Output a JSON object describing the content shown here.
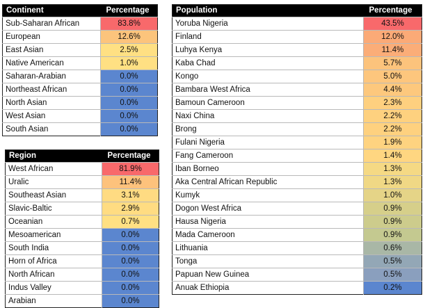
{
  "colors": {
    "header_bg": "#000000",
    "header_text": "#ffffff",
    "low": "#5b86cf",
    "scale": [
      "#f8696b",
      "#fb9d75",
      "#fdd17e",
      "#ffe083",
      "#e7dc87",
      "#c7d28e",
      "#a8bca2",
      "#8aa5b8",
      "#6f8ed0"
    ]
  },
  "tables": {
    "continent": {
      "headers": [
        "Continent",
        "Percentage"
      ],
      "rows": [
        {
          "name": "Sub-Saharan African",
          "value": "83.8%",
          "color": "#f8696b"
        },
        {
          "name": "European",
          "value": "12.6%",
          "color": "#fcc47c"
        },
        {
          "name": "East Asian",
          "value": "2.5%",
          "color": "#ffe083"
        },
        {
          "name": "Native American",
          "value": "1.0%",
          "color": "#ffe083"
        },
        {
          "name": "Saharan-Arabian",
          "value": "0.0%",
          "color": "#5b86cf"
        },
        {
          "name": "Northeast African",
          "value": "0.0%",
          "color": "#5b86cf"
        },
        {
          "name": "North Asian",
          "value": "0.0%",
          "color": "#5b86cf"
        },
        {
          "name": "West Asian",
          "value": "0.0%",
          "color": "#5b86cf"
        },
        {
          "name": "South Asian",
          "value": "0.0%",
          "color": "#5b86cf"
        }
      ]
    },
    "region": {
      "headers": [
        "Region",
        "Percentage"
      ],
      "rows": [
        {
          "name": "West African",
          "value": "81.9%",
          "color": "#f8696b"
        },
        {
          "name": "Uralic",
          "value": "11.4%",
          "color": "#fdc27c"
        },
        {
          "name": "Southeast Asian",
          "value": "3.1%",
          "color": "#ffdb82"
        },
        {
          "name": "Slavic-Baltic",
          "value": "2.9%",
          "color": "#ffdc82"
        },
        {
          "name": "Oceanian",
          "value": "0.7%",
          "color": "#ffe083"
        },
        {
          "name": "Mesoamerican",
          "value": "0.0%",
          "color": "#5b86cf"
        },
        {
          "name": "South India",
          "value": "0.0%",
          "color": "#5b86cf"
        },
        {
          "name": "Horn of Africa",
          "value": "0.0%",
          "color": "#5b86cf"
        },
        {
          "name": "North African",
          "value": "0.0%",
          "color": "#5b86cf"
        },
        {
          "name": "Indus Valley",
          "value": "0.0%",
          "color": "#5b86cf"
        },
        {
          "name": "Arabian",
          "value": "0.0%",
          "color": "#5b86cf"
        }
      ]
    },
    "population": {
      "headers": [
        "Population",
        "Percentage"
      ],
      "rows": [
        {
          "name": "Yoruba Nigeria",
          "value": "43.5%",
          "color": "#f8696b"
        },
        {
          "name": "Finland",
          "value": "12.0%",
          "color": "#fbaa77"
        },
        {
          "name": "Luhya Kenya",
          "value": "11.4%",
          "color": "#fbad78"
        },
        {
          "name": "Kaba Chad",
          "value": "5.7%",
          "color": "#fcc37c"
        },
        {
          "name": "Kongo",
          "value": "5.0%",
          "color": "#fdc67d"
        },
        {
          "name": "Bambara West Africa",
          "value": "4.4%",
          "color": "#fdc87d"
        },
        {
          "name": "Bamoun Cameroon",
          "value": "2.3%",
          "color": "#fed07f"
        },
        {
          "name": "Naxi China",
          "value": "2.2%",
          "color": "#fed17f"
        },
        {
          "name": "Brong",
          "value": "2.2%",
          "color": "#fed17f"
        },
        {
          "name": "Fulani Nigeria",
          "value": "1.9%",
          "color": "#fed380"
        },
        {
          "name": "Fang Cameroon",
          "value": "1.4%",
          "color": "#ffd681"
        },
        {
          "name": "Iban Borneo",
          "value": "1.3%",
          "color": "#f5d984"
        },
        {
          "name": "Aka Central African Republic",
          "value": "1.3%",
          "color": "#f0d885"
        },
        {
          "name": "Kumyk",
          "value": "1.0%",
          "color": "#e5d487"
        },
        {
          "name": "Dogon West Africa",
          "value": "0.9%",
          "color": "#d6cf8a"
        },
        {
          "name": "Hausa Nigeria",
          "value": "0.9%",
          "color": "#cdcc8c"
        },
        {
          "name": "Mada Cameroon",
          "value": "0.9%",
          "color": "#c4c990"
        },
        {
          "name": "Lithuania",
          "value": "0.6%",
          "color": "#a9b7a6"
        },
        {
          "name": "Tonga",
          "value": "0.5%",
          "color": "#93a7b6"
        },
        {
          "name": "Papuan New Guinea",
          "value": "0.5%",
          "color": "#8a9fbe"
        },
        {
          "name": "Anuak Ethiopia",
          "value": "0.2%",
          "color": "#5b86cf"
        }
      ]
    }
  }
}
